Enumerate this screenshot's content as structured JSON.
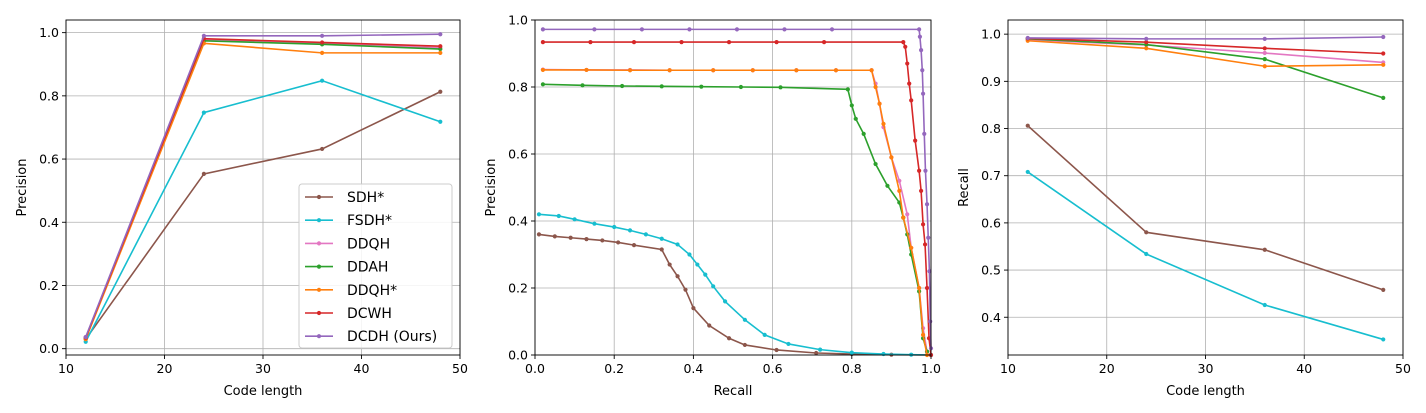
{
  "series_colors": {
    "SDH*": "#8c564b",
    "FSDH*": "#17becf",
    "DDQH": "#e377c2",
    "DDAH": "#2ca02c",
    "DDQH*": "#ff7f0e",
    "DCWH": "#d62728",
    "DCDH (Ours)": "#9467bd"
  },
  "legend": {
    "entries": [
      "SDH*",
      "FSDH*",
      "DDQH",
      "DDAH",
      "DDQH*",
      "DCWH",
      "DCDH (Ours)"
    ],
    "placement": "lower-right of first chart"
  },
  "chart_data": [
    {
      "type": "line",
      "title": "",
      "xlabel": "Code length",
      "ylabel": "Precision",
      "xlim": [
        10,
        50
      ],
      "ylim": [
        -0.02,
        1.04
      ],
      "xticks": [
        10,
        20,
        30,
        40,
        50
      ],
      "yticks": [
        0.0,
        0.2,
        0.4,
        0.6,
        0.8,
        1.0
      ],
      "ytick_labels": [
        "0.0",
        "0.2",
        "0.4",
        "0.6",
        "0.8",
        "1.0"
      ],
      "grid": true,
      "x": [
        12,
        24,
        36,
        48
      ],
      "series": [
        {
          "name": "SDH*",
          "values": [
            0.03,
            0.553,
            0.632,
            0.813
          ]
        },
        {
          "name": "FSDH*",
          "values": [
            0.022,
            0.747,
            0.848,
            0.718
          ]
        },
        {
          "name": "DDQH",
          "values": [
            0.033,
            0.978,
            0.966,
            0.952
          ]
        },
        {
          "name": "DDAH",
          "values": [
            0.033,
            0.974,
            0.963,
            0.948
          ]
        },
        {
          "name": "DDQH*",
          "values": [
            0.03,
            0.966,
            0.936,
            0.936
          ]
        },
        {
          "name": "DCWH",
          "values": [
            0.035,
            0.981,
            0.969,
            0.957
          ]
        },
        {
          "name": "DCDH (Ours)",
          "values": [
            0.037,
            0.99,
            0.99,
            0.995
          ]
        }
      ]
    },
    {
      "type": "line",
      "title": "",
      "xlabel": "Recall",
      "ylabel": "Precision",
      "xlim": [
        0,
        1
      ],
      "ylim": [
        0,
        1
      ],
      "xticks": [
        0.0,
        0.2,
        0.4,
        0.6,
        0.8,
        1.0
      ],
      "xtick_labels": [
        "0.0",
        "0.2",
        "0.4",
        "0.6",
        "0.8",
        "1.0"
      ],
      "yticks": [
        0.0,
        0.2,
        0.4,
        0.6,
        0.8,
        1.0
      ],
      "ytick_labels": [
        "0.0",
        "0.2",
        "0.4",
        "0.6",
        "0.8",
        "1.0"
      ],
      "grid": true,
      "series": [
        {
          "name": "SDH*",
          "points": [
            [
              0.01,
              0.36
            ],
            [
              0.05,
              0.354
            ],
            [
              0.09,
              0.35
            ],
            [
              0.13,
              0.346
            ],
            [
              0.17,
              0.342
            ],
            [
              0.21,
              0.336
            ],
            [
              0.25,
              0.328
            ],
            [
              0.32,
              0.315
            ],
            [
              0.34,
              0.27
            ],
            [
              0.36,
              0.235
            ],
            [
              0.38,
              0.195
            ],
            [
              0.4,
              0.14
            ],
            [
              0.44,
              0.088
            ],
            [
              0.49,
              0.05
            ],
            [
              0.53,
              0.03
            ],
            [
              0.61,
              0.015
            ],
            [
              0.71,
              0.006
            ],
            [
              0.8,
              0.003
            ],
            [
              0.9,
              0.001
            ],
            [
              1.0,
              0.0
            ]
          ]
        },
        {
          "name": "FSDH*",
          "points": [
            [
              0.01,
              0.42
            ],
            [
              0.06,
              0.415
            ],
            [
              0.1,
              0.405
            ],
            [
              0.15,
              0.392
            ],
            [
              0.2,
              0.382
            ],
            [
              0.24,
              0.372
            ],
            [
              0.28,
              0.36
            ],
            [
              0.32,
              0.347
            ],
            [
              0.36,
              0.33
            ],
            [
              0.39,
              0.3
            ],
            [
              0.41,
              0.27
            ],
            [
              0.43,
              0.24
            ],
            [
              0.45,
              0.205
            ],
            [
              0.48,
              0.16
            ],
            [
              0.53,
              0.105
            ],
            [
              0.58,
              0.06
            ],
            [
              0.64,
              0.033
            ],
            [
              0.72,
              0.016
            ],
            [
              0.8,
              0.007
            ],
            [
              0.88,
              0.003
            ],
            [
              0.95,
              0.001
            ],
            [
              1.0,
              0.0
            ]
          ]
        },
        {
          "name": "DDQH",
          "points": [
            [
              0.02,
              0.852
            ],
            [
              0.13,
              0.851
            ],
            [
              0.24,
              0.851
            ],
            [
              0.34,
              0.85
            ],
            [
              0.45,
              0.85
            ],
            [
              0.55,
              0.85
            ],
            [
              0.66,
              0.85
            ],
            [
              0.76,
              0.85
            ],
            [
              0.85,
              0.85
            ],
            [
              0.86,
              0.81
            ],
            [
              0.87,
              0.75
            ],
            [
              0.88,
              0.68
            ],
            [
              0.9,
              0.59
            ],
            [
              0.92,
              0.52
            ],
            [
              0.94,
              0.42
            ],
            [
              0.95,
              0.32
            ],
            [
              0.97,
              0.2
            ],
            [
              0.98,
              0.08
            ],
            [
              0.99,
              0.01
            ]
          ]
        },
        {
          "name": "DDAH",
          "points": [
            [
              0.02,
              0.808
            ],
            [
              0.12,
              0.805
            ],
            [
              0.22,
              0.803
            ],
            [
              0.32,
              0.802
            ],
            [
              0.42,
              0.801
            ],
            [
              0.52,
              0.8
            ],
            [
              0.62,
              0.799
            ],
            [
              0.79,
              0.793
            ],
            [
              0.8,
              0.745
            ],
            [
              0.81,
              0.705
            ],
            [
              0.83,
              0.66
            ],
            [
              0.86,
              0.57
            ],
            [
              0.89,
              0.505
            ],
            [
              0.92,
              0.455
            ],
            [
              0.93,
              0.41
            ],
            [
              0.94,
              0.36
            ],
            [
              0.95,
              0.3
            ],
            [
              0.97,
              0.19
            ],
            [
              0.98,
              0.05
            ],
            [
              0.99,
              0.01
            ]
          ]
        },
        {
          "name": "DDQH*",
          "points": [
            [
              0.02,
              0.851
            ],
            [
              0.13,
              0.851
            ],
            [
              0.24,
              0.85
            ],
            [
              0.34,
              0.85
            ],
            [
              0.45,
              0.85
            ],
            [
              0.55,
              0.85
            ],
            [
              0.66,
              0.85
            ],
            [
              0.76,
              0.85
            ],
            [
              0.85,
              0.85
            ],
            [
              0.86,
              0.8
            ],
            [
              0.87,
              0.75
            ],
            [
              0.88,
              0.69
            ],
            [
              0.9,
              0.59
            ],
            [
              0.92,
              0.49
            ],
            [
              0.93,
              0.41
            ],
            [
              0.95,
              0.32
            ],
            [
              0.97,
              0.2
            ],
            [
              0.98,
              0.06
            ],
            [
              0.99,
              0.0
            ]
          ]
        },
        {
          "name": "DCWH",
          "points": [
            [
              0.02,
              0.934
            ],
            [
              0.14,
              0.934
            ],
            [
              0.25,
              0.934
            ],
            [
              0.37,
              0.934
            ],
            [
              0.49,
              0.934
            ],
            [
              0.61,
              0.934
            ],
            [
              0.73,
              0.934
            ],
            [
              0.93,
              0.934
            ],
            [
              0.935,
              0.92
            ],
            [
              0.94,
              0.87
            ],
            [
              0.945,
              0.81
            ],
            [
              0.95,
              0.76
            ],
            [
              0.96,
              0.64
            ],
            [
              0.97,
              0.55
            ],
            [
              0.975,
              0.49
            ],
            [
              0.98,
              0.39
            ],
            [
              0.985,
              0.33
            ],
            [
              0.99,
              0.2
            ],
            [
              0.995,
              0.05
            ],
            [
              1.0,
              0.0
            ]
          ]
        },
        {
          "name": "DCDH (Ours)",
          "points": [
            [
              0.02,
              0.972
            ],
            [
              0.15,
              0.972
            ],
            [
              0.27,
              0.972
            ],
            [
              0.39,
              0.972
            ],
            [
              0.51,
              0.972
            ],
            [
              0.63,
              0.972
            ],
            [
              0.75,
              0.972
            ],
            [
              0.97,
              0.972
            ],
            [
              0.972,
              0.95
            ],
            [
              0.975,
              0.91
            ],
            [
              0.978,
              0.85
            ],
            [
              0.98,
              0.78
            ],
            [
              0.983,
              0.66
            ],
            [
              0.986,
              0.55
            ],
            [
              0.99,
              0.45
            ],
            [
              0.993,
              0.35
            ],
            [
              0.996,
              0.25
            ],
            [
              0.998,
              0.1
            ],
            [
              1.0,
              0.02
            ]
          ]
        }
      ]
    },
    {
      "type": "line",
      "title": "",
      "xlabel": "Code length",
      "ylabel": "Recall",
      "xlim": [
        10,
        50
      ],
      "ylim": [
        0.32,
        1.03
      ],
      "xticks": [
        10,
        20,
        30,
        40,
        50
      ],
      "yticks": [
        0.4,
        0.5,
        0.6,
        0.7,
        0.8,
        0.9,
        1.0
      ],
      "ytick_labels": [
        "0.4",
        "0.5",
        "0.6",
        "0.7",
        "0.8",
        "0.9",
        "1.0"
      ],
      "grid": true,
      "x": [
        12,
        24,
        36,
        48
      ],
      "series": [
        {
          "name": "SDH*",
          "values": [
            0.806,
            0.58,
            0.543,
            0.458
          ]
        },
        {
          "name": "FSDH*",
          "values": [
            0.708,
            0.534,
            0.426,
            0.353
          ]
        },
        {
          "name": "DDQH",
          "values": [
            0.988,
            0.977,
            0.96,
            0.94
          ]
        },
        {
          "name": "DDAH",
          "values": [
            0.99,
            0.978,
            0.947,
            0.865
          ]
        },
        {
          "name": "DDQH*",
          "values": [
            0.986,
            0.97,
            0.932,
            0.935
          ]
        },
        {
          "name": "DCWH",
          "values": [
            0.991,
            0.983,
            0.97,
            0.959
          ]
        },
        {
          "name": "DCDH (Ours)",
          "values": [
            0.992,
            0.99,
            0.99,
            0.994
          ]
        }
      ]
    }
  ]
}
